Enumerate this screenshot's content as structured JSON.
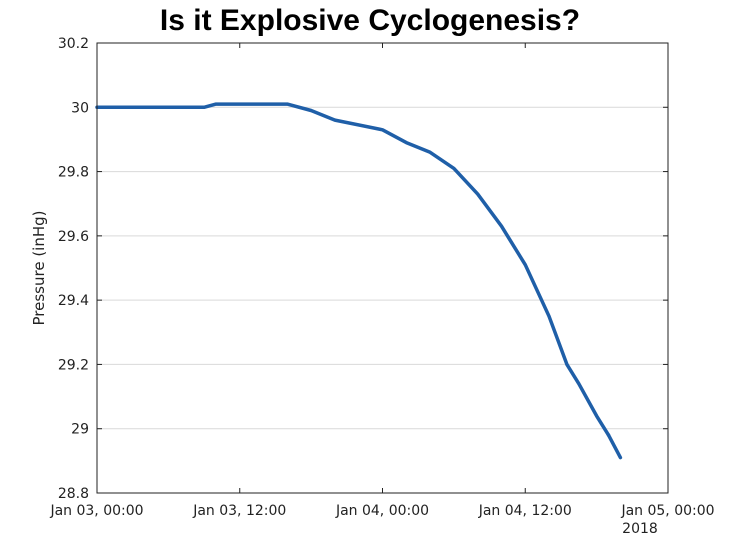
{
  "chart_data": {
    "type": "line",
    "title": "Is it Explosive Cyclogenesis?",
    "xlabel": "",
    "ylabel": "Pressure (inHg)",
    "x_axis_secondary_label": "2018",
    "xlim": [
      "2018-01-03 00:00",
      "2018-01-05 00:00"
    ],
    "ylim": [
      28.8,
      30.2
    ],
    "x_ticks": [
      "Jan 03, 00:00",
      "Jan 03, 12:00",
      "Jan 04, 00:00",
      "Jan 04, 12:00",
      "Jan 05, 00:00"
    ],
    "y_ticks": [
      "28.8",
      "29",
      "29.2",
      "29.4",
      "29.6",
      "29.8",
      "30",
      "30.2"
    ],
    "grid": "horizontal",
    "line_color": "#1f5fa8",
    "series": [
      {
        "x": [
          "2018-01-03 00:00",
          "2018-01-03 06:00",
          "2018-01-03 09:00",
          "2018-01-03 10:00",
          "2018-01-03 12:00",
          "2018-01-03 16:00",
          "2018-01-03 18:00",
          "2018-01-03 20:00",
          "2018-01-04 00:00",
          "2018-01-04 02:00",
          "2018-01-04 04:00",
          "2018-01-04 06:00",
          "2018-01-04 08:00",
          "2018-01-04 10:00",
          "2018-01-04 12:00",
          "2018-01-04 14:00",
          "2018-01-04 15:30",
          "2018-01-04 16:30",
          "2018-01-04 18:00",
          "2018-01-04 19:00"
        ],
        "y": [
          30.0,
          30.0,
          30.0,
          30.01,
          30.01,
          30.01,
          29.99,
          29.96,
          29.93,
          29.89,
          29.86,
          29.81,
          29.73,
          29.63,
          29.51,
          29.35,
          29.2,
          29.14,
          29.04,
          28.98
        ]
      },
      {
        "x": [
          "2018-01-04 19:00",
          "2018-01-04 20:00"
        ],
        "y": [
          28.98,
          28.91
        ]
      }
    ]
  }
}
